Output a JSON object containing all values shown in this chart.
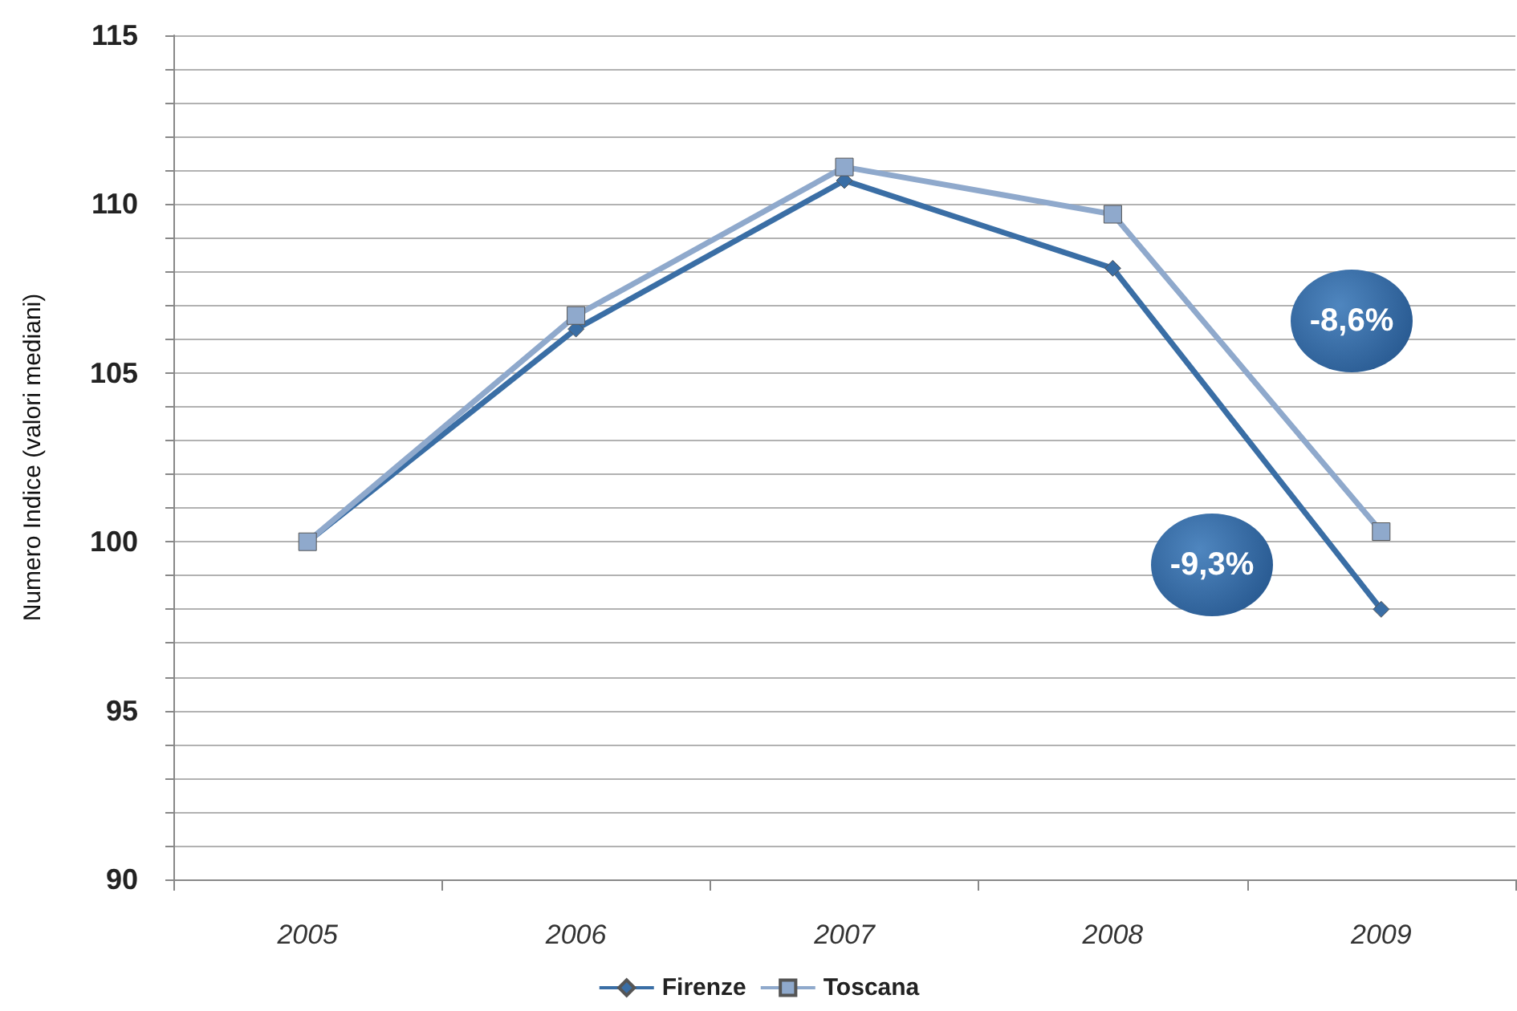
{
  "chart_data": {
    "type": "line",
    "ylabel": "Numero Indice (valori mediani)",
    "categories": [
      "2005",
      "2006",
      "2007",
      "2008",
      "2009"
    ],
    "series": [
      {
        "name": "Firenze",
        "color": "#3a6ea5",
        "marker": "diamond",
        "values": [
          100,
          106.3,
          110.7,
          108.1,
          98.0
        ]
      },
      {
        "name": "Toscana",
        "color": "#8fa9cc",
        "marker": "square",
        "values": [
          100,
          106.7,
          111.1,
          109.7,
          100.3
        ]
      }
    ],
    "ylim": [
      90,
      115
    ],
    "yticks": [
      90,
      {
        "value": 91,
        "label": null
      },
      {
        "value": 92,
        "label": null
      },
      {
        "value": 93,
        "label": null
      },
      {
        "value": 94,
        "label": null
      },
      95,
      {
        "value": 96,
        "label": null
      },
      {
        "value": 97,
        "label": null
      },
      {
        "value": 98,
        "label": null
      },
      {
        "value": 99,
        "label": null
      },
      100,
      {
        "value": 101,
        "label": null
      },
      {
        "value": 102,
        "label": null
      },
      {
        "value": 103,
        "label": null
      },
      {
        "value": 104,
        "label": null
      },
      105,
      {
        "value": 106,
        "label": null
      },
      {
        "value": 107,
        "label": null
      },
      {
        "value": 108,
        "label": null
      },
      {
        "value": 109,
        "label": null
      },
      110,
      {
        "value": 111,
        "label": null
      },
      {
        "value": 112,
        "label": null
      },
      {
        "value": 113,
        "label": null
      },
      {
        "value": 114,
        "label": null
      },
      115
    ],
    "annotations": [
      "-8,6%",
      "-9,3%"
    ],
    "grid": "y",
    "legend": "bottom"
  }
}
